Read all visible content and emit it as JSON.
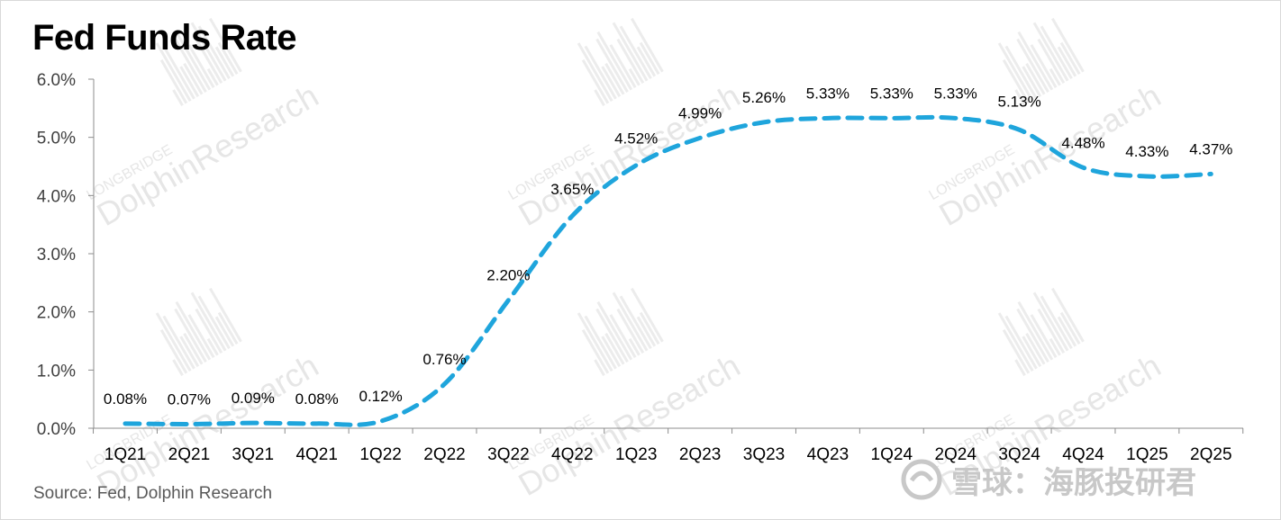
{
  "title": "Fed Funds Rate",
  "source": "Source: Fed, Dolphin Research",
  "watermark": {
    "brand_small": "LONGBRIDGE",
    "brand_large": "DolphinResearch",
    "footer_brand": "雪球：海豚投研君"
  },
  "colors": {
    "line": "#1fa5dc",
    "axis": "#8c8c8c",
    "text": "#000000",
    "watermark": "#e6e6e6"
  },
  "chart_data": {
    "type": "line",
    "title": "Fed Funds Rate",
    "categories": [
      "1Q21",
      "2Q21",
      "3Q21",
      "4Q21",
      "1Q22",
      "2Q22",
      "3Q22",
      "4Q22",
      "1Q23",
      "2Q23",
      "3Q23",
      "4Q23",
      "1Q24",
      "2Q24",
      "3Q24",
      "4Q24",
      "1Q25",
      "2Q25"
    ],
    "series": [
      {
        "values": [
          0.08,
          0.07,
          0.09,
          0.08,
          0.12,
          0.76,
          2.2,
          3.65,
          4.52,
          4.99,
          5.26,
          5.33,
          5.33,
          5.33,
          5.13,
          4.48,
          4.33,
          4.37
        ]
      }
    ],
    "data_labels": [
      "0.08%",
      "0.07%",
      "0.09%",
      "0.08%",
      "0.12%",
      "0.76%",
      "2.20%",
      "3.65%",
      "4.52%",
      "4.99%",
      "5.26%",
      "5.33%",
      "5.33%",
      "5.33%",
      "5.13%",
      "4.48%",
      "4.33%",
      "4.37%"
    ],
    "y_ticks": [
      "0.0%",
      "1.0%",
      "2.0%",
      "3.0%",
      "4.0%",
      "5.0%",
      "6.0%"
    ],
    "ylim": [
      0,
      6
    ],
    "line_style": "dashed smooth",
    "grid": false,
    "legend": "none"
  }
}
